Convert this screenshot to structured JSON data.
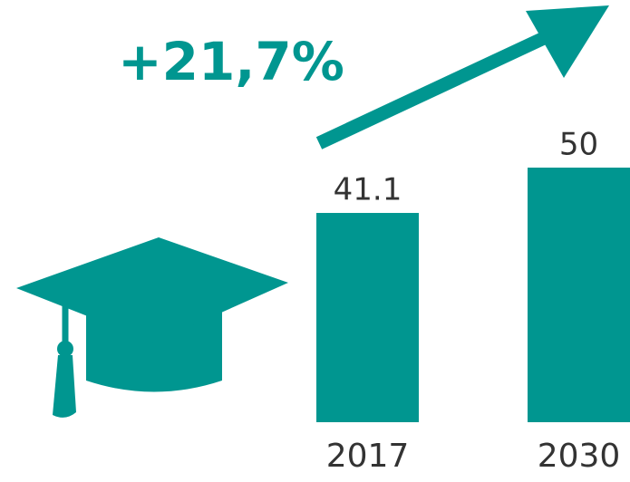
{
  "chart_data": {
    "type": "bar",
    "annotations": [
      "+21,7%"
    ],
    "categories": [
      "2017",
      "2030"
    ],
    "values": [
      41.1,
      50
    ],
    "color": "#009690"
  }
}
